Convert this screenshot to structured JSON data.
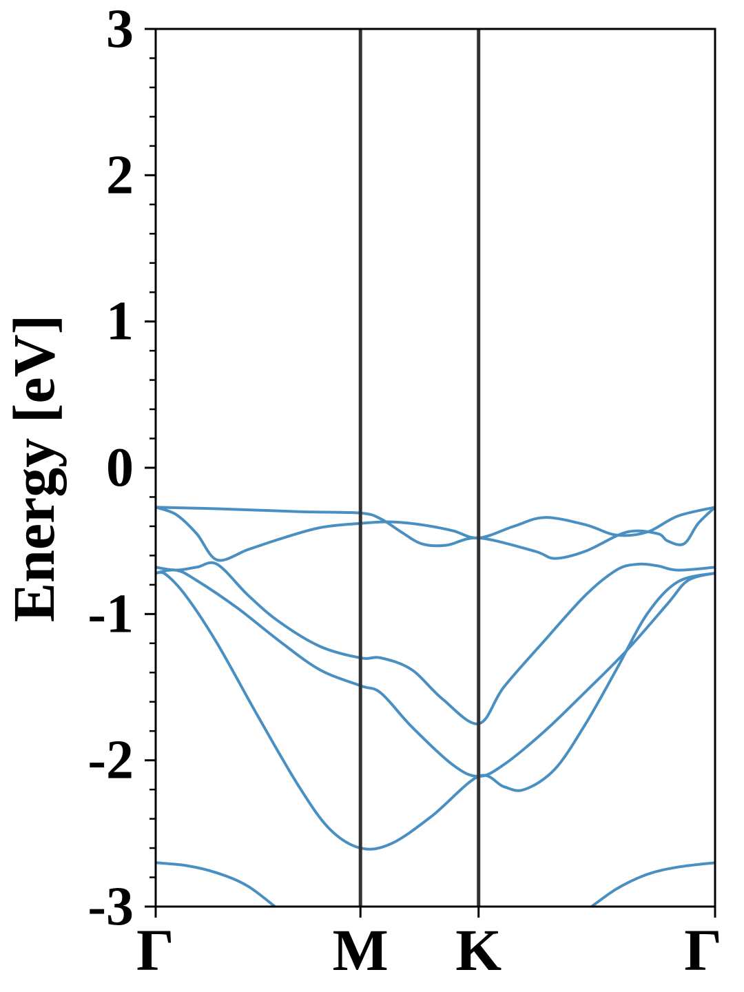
{
  "chart_data": {
    "type": "line",
    "title": "",
    "xlabel": "",
    "ylabel": "Energy [eV]",
    "ylim": [
      -3,
      3
    ],
    "yticks": [
      "3",
      "2",
      "1",
      "0",
      "-1",
      "-2",
      "-3"
    ],
    "ytick_values": [
      3,
      2,
      1,
      0,
      -1,
      -2,
      -3
    ],
    "kpoints": [
      {
        "label": "Γ",
        "k": 0.0
      },
      {
        "label": "M",
        "k": 1.0
      },
      {
        "label": "K",
        "k": 1.577
      },
      {
        "label": "Γ",
        "k": 2.732
      }
    ],
    "grid": false,
    "colors": {
      "band": "#4a8fc1",
      "kpath_line": "#333333",
      "axes": "#000000"
    },
    "series": [
      {
        "values": [
          [
            0.0,
            -0.27
          ],
          [
            0.3,
            -0.28
          ],
          [
            0.7,
            -0.3
          ],
          [
            1.0,
            -0.31
          ],
          [
            1.1,
            -0.35
          ],
          [
            1.2,
            -0.44
          ],
          [
            1.3,
            -0.52
          ],
          [
            1.42,
            -0.53
          ],
          [
            1.577,
            -0.48
          ],
          [
            1.85,
            -0.57
          ],
          [
            1.95,
            -0.62
          ],
          [
            2.1,
            -0.57
          ],
          [
            2.3,
            -0.44
          ],
          [
            2.45,
            -0.45
          ],
          [
            2.5,
            -0.5
          ],
          [
            2.58,
            -0.52
          ],
          [
            2.65,
            -0.38
          ],
          [
            2.732,
            -0.27
          ]
        ]
      },
      {
        "values": [
          [
            0.0,
            -0.27
          ],
          [
            0.1,
            -0.32
          ],
          [
            0.2,
            -0.45
          ],
          [
            0.3,
            -0.63
          ],
          [
            0.45,
            -0.56
          ],
          [
            0.6,
            -0.49
          ],
          [
            0.8,
            -0.41
          ],
          [
            1.0,
            -0.38
          ],
          [
            1.15,
            -0.37
          ],
          [
            1.3,
            -0.39
          ],
          [
            1.45,
            -0.43
          ],
          [
            1.577,
            -0.48
          ],
          [
            1.75,
            -0.4
          ],
          [
            1.9,
            -0.34
          ],
          [
            2.1,
            -0.39
          ],
          [
            2.25,
            -0.46
          ],
          [
            2.4,
            -0.44
          ],
          [
            2.55,
            -0.33
          ],
          [
            2.732,
            -0.27
          ]
        ]
      },
      {
        "values": [
          [
            0.0,
            -0.68
          ],
          [
            0.1,
            -0.7
          ],
          [
            0.2,
            -0.68
          ],
          [
            0.3,
            -0.66
          ],
          [
            0.45,
            -0.87
          ],
          [
            0.6,
            -1.05
          ],
          [
            0.8,
            -1.22
          ],
          [
            1.0,
            -1.3
          ],
          [
            1.1,
            -1.3
          ],
          [
            1.25,
            -1.38
          ],
          [
            1.4,
            -1.58
          ],
          [
            1.577,
            -1.75
          ],
          [
            1.7,
            -1.5
          ],
          [
            1.9,
            -1.18
          ],
          [
            2.1,
            -0.87
          ],
          [
            2.25,
            -0.7
          ],
          [
            2.35,
            -0.66
          ],
          [
            2.45,
            -0.67
          ],
          [
            2.55,
            -0.7
          ],
          [
            2.732,
            -0.68
          ]
        ]
      },
      {
        "values": [
          [
            0.0,
            -0.72
          ],
          [
            0.1,
            -0.7
          ],
          [
            0.2,
            -0.77
          ],
          [
            0.4,
            -0.96
          ],
          [
            0.6,
            -1.18
          ],
          [
            0.8,
            -1.38
          ],
          [
            1.0,
            -1.49
          ],
          [
            1.1,
            -1.54
          ],
          [
            1.25,
            -1.77
          ],
          [
            1.45,
            -2.03
          ],
          [
            1.577,
            -2.11
          ],
          [
            1.7,
            -2.03
          ],
          [
            1.9,
            -1.8
          ],
          [
            2.1,
            -1.53
          ],
          [
            2.3,
            -1.25
          ],
          [
            2.5,
            -0.93
          ],
          [
            2.6,
            -0.77
          ],
          [
            2.732,
            -0.72
          ]
        ]
      },
      {
        "values": [
          [
            0.0,
            -0.72
          ],
          [
            0.05,
            -0.73
          ],
          [
            0.15,
            -0.88
          ],
          [
            0.3,
            -1.2
          ],
          [
            0.5,
            -1.7
          ],
          [
            0.7,
            -2.18
          ],
          [
            0.85,
            -2.47
          ],
          [
            1.0,
            -2.6
          ],
          [
            1.15,
            -2.57
          ],
          [
            1.35,
            -2.38
          ],
          [
            1.577,
            -2.11
          ],
          [
            1.7,
            -2.18
          ],
          [
            1.8,
            -2.2
          ],
          [
            1.95,
            -2.06
          ],
          [
            2.1,
            -1.75
          ],
          [
            2.25,
            -1.38
          ],
          [
            2.4,
            -1.0
          ],
          [
            2.55,
            -0.78
          ],
          [
            2.732,
            -0.72
          ]
        ]
      },
      {
        "values": [
          [
            0.0,
            -2.7
          ],
          [
            0.15,
            -2.72
          ],
          [
            0.3,
            -2.77
          ],
          [
            0.45,
            -2.86
          ],
          [
            0.6,
            -3.02
          ]
        ]
      },
      {
        "values": [
          [
            2.11,
            -3.02
          ],
          [
            2.25,
            -2.88
          ],
          [
            2.4,
            -2.78
          ],
          [
            2.55,
            -2.73
          ],
          [
            2.732,
            -2.7
          ]
        ]
      }
    ]
  }
}
